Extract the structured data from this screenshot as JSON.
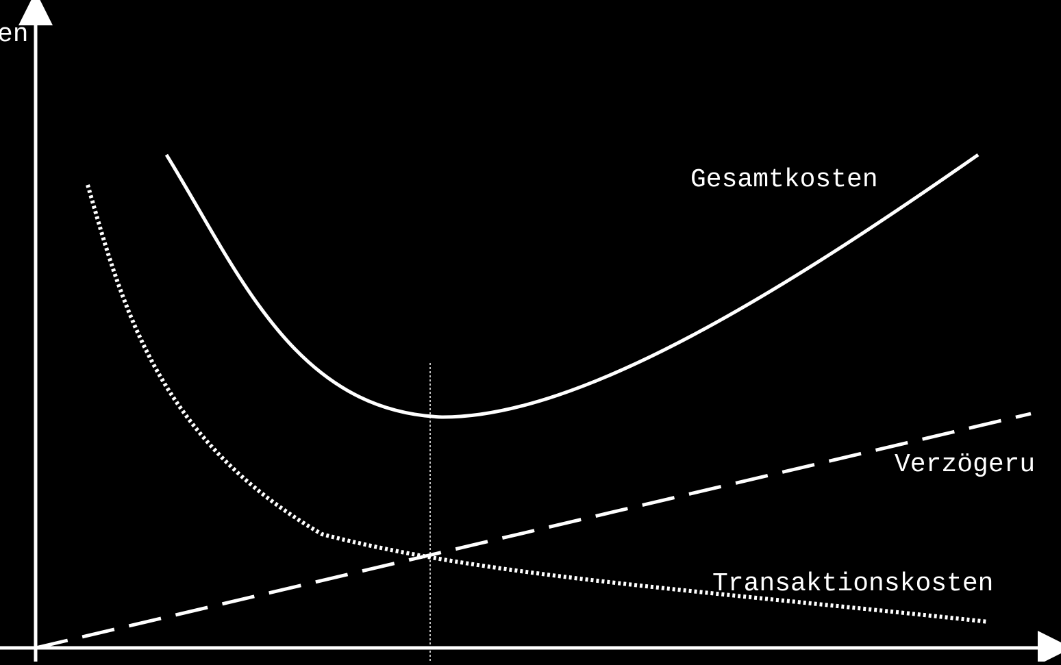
{
  "diagram": {
    "background_color": "#000000",
    "line_color": "#ffffff",
    "y_axis_label": "en",
    "curves": [
      {
        "id": "gesamtkosten",
        "label": "Gesamtkosten",
        "style": "solid"
      },
      {
        "id": "verzoegerung",
        "label": "Verzögeru",
        "style": "dashed"
      },
      {
        "id": "transaktionskosten",
        "label": "Transaktionskosten",
        "style": "dotted"
      }
    ],
    "optimum_marker": {
      "style": "thin-dotted-vertical"
    }
  }
}
